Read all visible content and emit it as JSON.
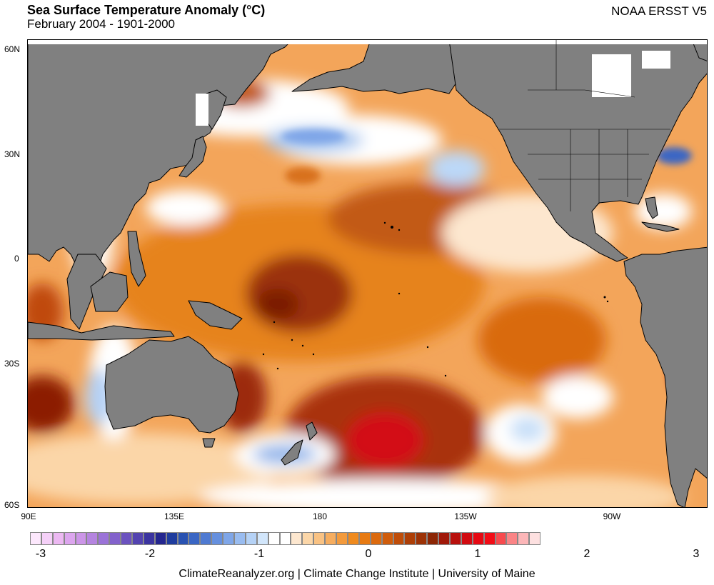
{
  "header": {
    "title": "Sea Surface Temperature Anomaly (°C)",
    "subtitle": "February 2004 - 1901-2000",
    "dataset": "NOAA ERSST V5"
  },
  "map": {
    "lat_labels": [
      "60N",
      "30N",
      "0",
      "30S",
      "60S"
    ],
    "lon_labels": [
      "90E",
      "135E",
      "180",
      "135W",
      "90W"
    ],
    "land_color": "#808080",
    "coast_color": "#000000"
  },
  "colorbar": {
    "tick_labels": [
      "-3",
      "-2",
      "-1",
      "0",
      "1",
      "2",
      "3"
    ],
    "colors": [
      "#fde8fd",
      "#f5d0f8",
      "#ecb8f2",
      "#dca5ee",
      "#cc95e8",
      "#b584e0",
      "#9b73d8",
      "#8362cc",
      "#6b52bf",
      "#5343b0",
      "#3b34a0",
      "#24268f",
      "#1f3c9e",
      "#2952b2",
      "#3a66c4",
      "#4f7ad2",
      "#6690de",
      "#7fa6e8",
      "#99bcf0",
      "#b5d2f6",
      "#d2e6fb",
      "#ffffff",
      "#ffffff",
      "#fde7cf",
      "#fbd6a8",
      "#f9c283",
      "#f6ad5f",
      "#f39a3c",
      "#ef8a1e",
      "#e77a12",
      "#dc6a0e",
      "#cf5c0b",
      "#bf4d09",
      "#ad3f07",
      "#9c3206",
      "#8c2605",
      "#a01809",
      "#b8100c",
      "#d10a10",
      "#e60812",
      "#f20c16",
      "#f84a4e",
      "#fb8486",
      "#fcb6b8",
      "#fde0e0"
    ]
  },
  "footer": {
    "credit": "ClimateReanalyzer.org | Climate Change Institute | University of Maine"
  }
}
